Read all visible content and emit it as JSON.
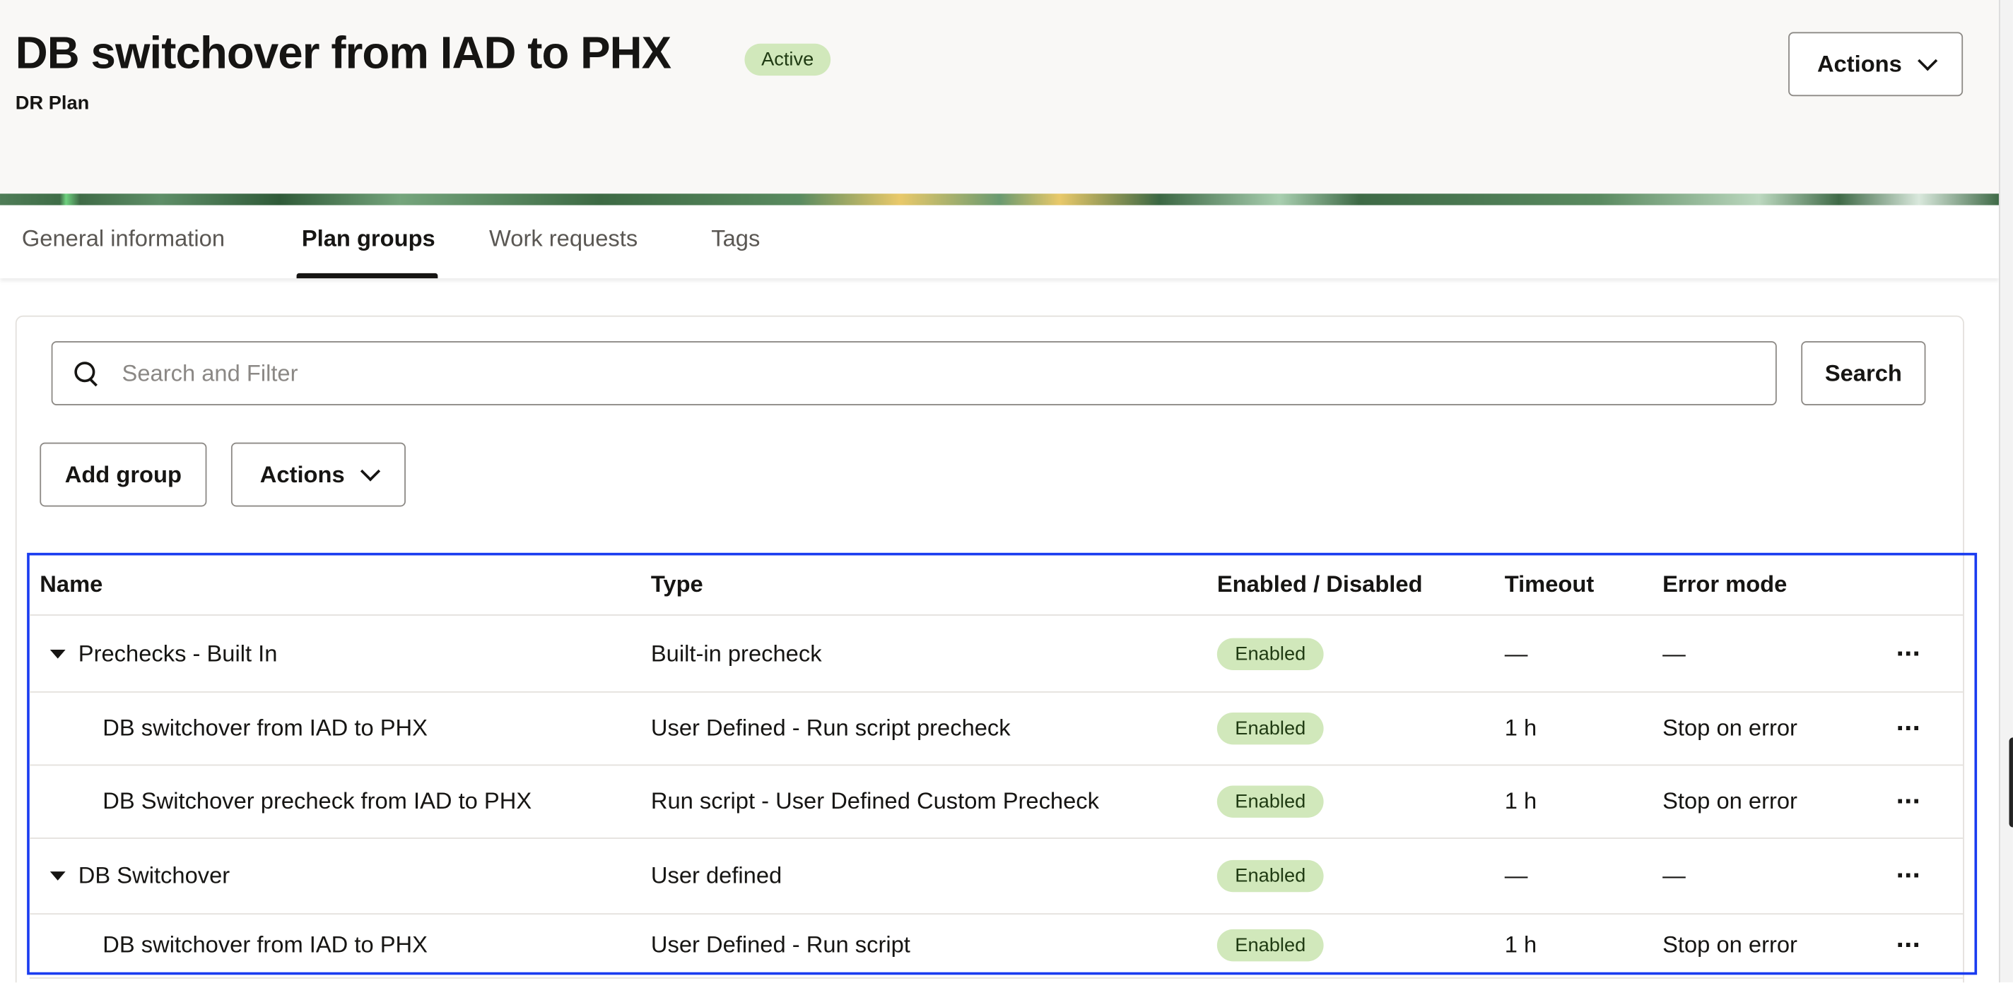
{
  "header": {
    "title": "DB switchover from IAD to PHX",
    "status": "Active",
    "subtitle": "DR Plan",
    "actions_label": "Actions"
  },
  "tabs": [
    {
      "label": "General information",
      "active": false
    },
    {
      "label": "Plan groups",
      "active": true
    },
    {
      "label": "Work requests",
      "active": false
    },
    {
      "label": "Tags",
      "active": false
    }
  ],
  "search": {
    "placeholder": "Search and Filter",
    "value": "",
    "button_label": "Search"
  },
  "toolbar": {
    "add_group_label": "Add group",
    "actions_label": "Actions"
  },
  "table": {
    "columns": [
      "Name",
      "Type",
      "Enabled / Disabled",
      "Timeout",
      "Error mode"
    ],
    "rows": [
      {
        "name": "Prechecks - Built In",
        "type": "Built-in precheck",
        "enabled": "Enabled",
        "timeout": "—",
        "error_mode": "—",
        "group": true
      },
      {
        "name": "DB switchover from IAD to PHX",
        "type": "User Defined - Run script precheck",
        "enabled": "Enabled",
        "timeout": "1 h",
        "error_mode": "Stop on error",
        "group": false
      },
      {
        "name": "DB Switchover precheck from IAD to PHX",
        "type": "Run script - User Defined Custom Precheck",
        "enabled": "Enabled",
        "timeout": "1 h",
        "error_mode": "Stop on error",
        "group": false
      },
      {
        "name": "DB Switchover",
        "type": "User defined",
        "enabled": "Enabled",
        "timeout": "—",
        "error_mode": "—",
        "group": true
      },
      {
        "name": "DB switchover from IAD to PHX",
        "type": "User Defined - Run script",
        "enabled": "Enabled",
        "timeout": "1 h",
        "error_mode": "Stop on error",
        "group": false
      }
    ]
  },
  "colors": {
    "badge_bg": "#d1e8bb",
    "selection_outline": "#1a3cf0",
    "header_bg": "#f9f8f6"
  },
  "icons": {
    "search": "search-icon",
    "chevron": "chevron-down-icon",
    "caret": "caret-down-icon",
    "more": "more-actions-icon"
  }
}
